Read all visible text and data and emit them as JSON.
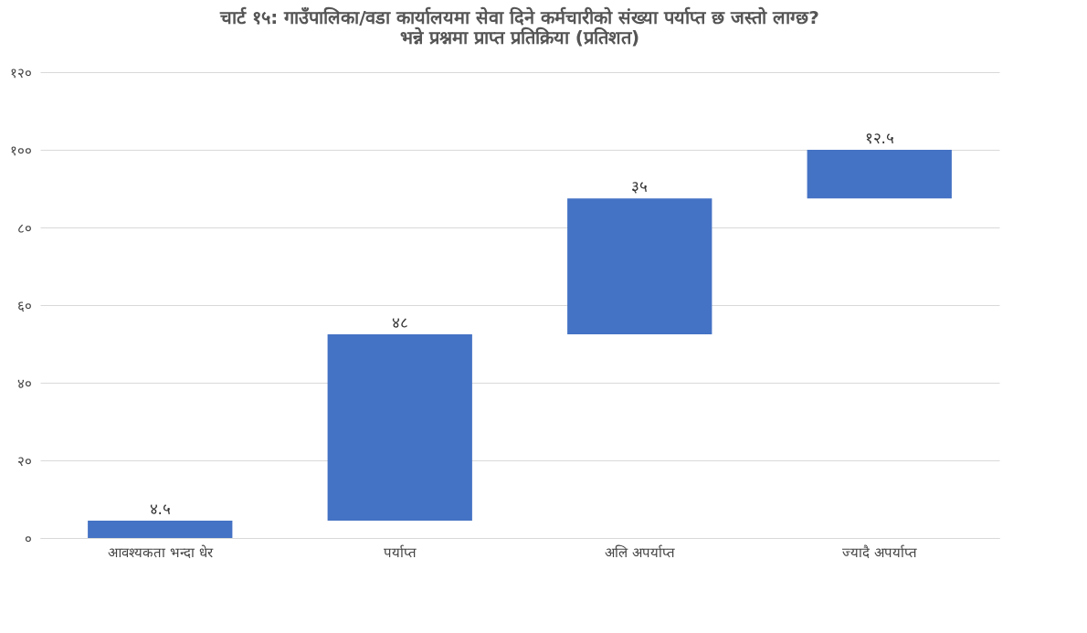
{
  "chart_data": {
    "type": "bar",
    "title": "चार्ट १५: गाउँपालिका/वडा कार्यालयमा सेवा दिने कर्मचारीको संख्या पर्याप्त छ जस्तो लाग्छ? भन्ने प्रश्नमा प्राप्त प्रतिक्रिया (प्रतिशत)",
    "categories": [
      "आवश्यकता भन्दा धेर",
      "पर्याप्त",
      "अलि अपर्याप्त",
      "ज्यादै अपर्याप्त"
    ],
    "values": [
      4.5,
      48,
      35,
      12.5
    ],
    "base": [
      0,
      4.5,
      52.5,
      87.5
    ],
    "value_labels": [
      "४.५",
      "४८",
      "३५",
      "१२.५"
    ],
    "color": "#4472c4",
    "ylim": [
      0,
      120
    ],
    "yticks": [
      {
        "value": 0,
        "label": "०"
      },
      {
        "value": 20,
        "label": "२०"
      },
      {
        "value": 40,
        "label": "४०"
      },
      {
        "value": 60,
        "label": "६०"
      },
      {
        "value": 80,
        "label": "८०"
      },
      {
        "value": 100,
        "label": "१००"
      },
      {
        "value": 120,
        "label": "१२०"
      }
    ],
    "grid": "y"
  }
}
